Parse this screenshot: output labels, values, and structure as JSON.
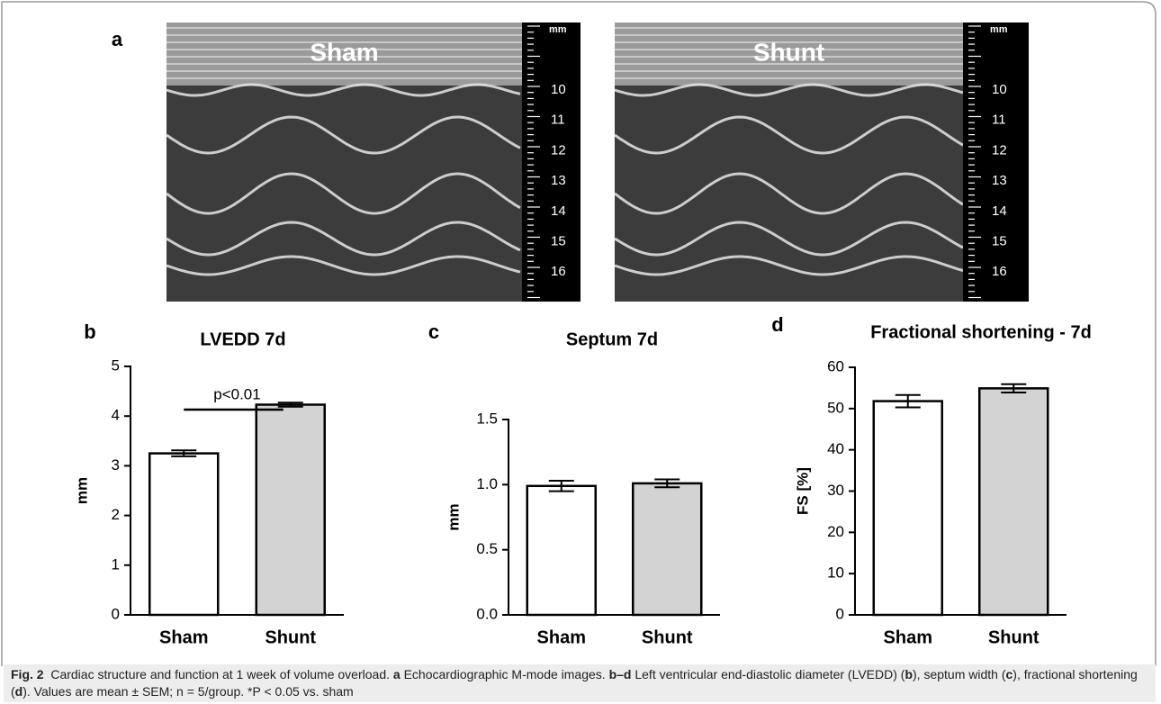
{
  "panel_a": {
    "label": "a",
    "scale_unit": "mm",
    "images": [
      {
        "label": "Sham",
        "scale": [
          "10",
          "11",
          "12",
          "13",
          "14",
          "15",
          "16"
        ]
      },
      {
        "label": "Shunt",
        "scale": [
          "10",
          "11",
          "12",
          "13",
          "14",
          "15",
          "16"
        ]
      }
    ]
  },
  "chart_data": [
    {
      "type": "bar",
      "panel": "b",
      "title": "LVEDD 7d",
      "ylabel": "mm",
      "categories": [
        "Sham",
        "Shunt"
      ],
      "values": [
        3.25,
        4.23
      ],
      "errors": [
        0.06,
        0.04
      ],
      "colors": [
        "#ffffff",
        "#d3d3d3"
      ],
      "ylim": [
        0,
        5
      ],
      "yticks": [
        0,
        1,
        2,
        3,
        4,
        5
      ],
      "annotation": "p<0.01"
    },
    {
      "type": "bar",
      "panel": "c",
      "title": "Septum 7d",
      "ylabel": "mm",
      "categories": [
        "Sham",
        "Shunt"
      ],
      "values": [
        0.99,
        1.01
      ],
      "errors": [
        0.04,
        0.03
      ],
      "colors": [
        "#ffffff",
        "#d3d3d3"
      ],
      "ylim": [
        0,
        1.5
      ],
      "yticks": [
        {
          "value": 0,
          "label": "0.0"
        },
        0.5,
        {
          "value": 1,
          "label": "1.0"
        },
        1.5
      ]
    },
    {
      "type": "bar",
      "panel": "d",
      "title": "Fractional shortening -  7d",
      "ylabel": "FS [%]",
      "categories": [
        "Sham",
        "Shunt"
      ],
      "values": [
        51.8,
        54.9
      ],
      "errors": [
        1.5,
        1.0
      ],
      "colors": [
        "#ffffff",
        "#d3d3d3"
      ],
      "ylim": [
        0,
        60
      ],
      "yticks": [
        0,
        10,
        20,
        30,
        40,
        50,
        60
      ]
    }
  ],
  "caption": {
    "segments": [
      {
        "text": "Fig. 2",
        "bold": true
      },
      {
        "text": "  Cardiac structure and function at 1 week of volume overload. ",
        "bold": false
      },
      {
        "text": "a",
        "bold": true
      },
      {
        "text": " Echocardiographic M-mode images. ",
        "bold": false
      },
      {
        "text": "b–d",
        "bold": true
      },
      {
        "text": " Left ventricular end-diastolic diameter (LVEDD) (",
        "bold": false
      },
      {
        "text": "b",
        "bold": true
      },
      {
        "text": "), septum width (",
        "bold": false
      },
      {
        "text": "c",
        "bold": true
      },
      {
        "text": "), fractional shortening (",
        "bold": false
      },
      {
        "text": "d",
        "bold": true
      },
      {
        "text": "). Values are mean ± SEM; n = 5/group. *P < 0.05 vs. sham",
        "bold": false
      }
    ]
  }
}
